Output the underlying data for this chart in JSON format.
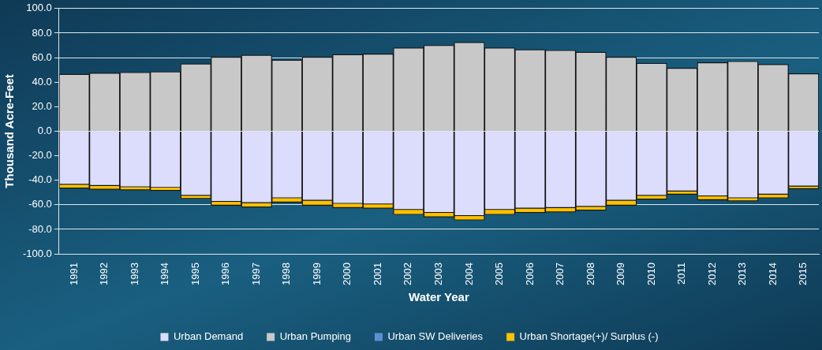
{
  "chart_data": {
    "type": "bar",
    "stacked": true,
    "xlabel": "Water Year",
    "ylabel": "Thousand Acre-Feet",
    "categories": [
      "1991",
      "1992",
      "1993",
      "1994",
      "1995",
      "1996",
      "1997",
      "1998",
      "1999",
      "2000",
      "2001",
      "2002",
      "2003",
      "2004",
      "2005",
      "2006",
      "2007",
      "2008",
      "2009",
      "2010",
      "2011",
      "2012",
      "2013",
      "2014",
      "2015"
    ],
    "series": [
      {
        "name": "Urban Demand",
        "color": "#dcdcfc",
        "values": [
          -43.5,
          -44.5,
          -45.5,
          -46,
          -52.5,
          -57.5,
          -58.5,
          -54.5,
          -56.5,
          -59,
          -59.5,
          -64,
          -66.5,
          -69,
          -64,
          -63,
          -62.5,
          -61.5,
          -56.5,
          -52.5,
          -49,
          -53,
          -54.5,
          -51.5,
          -45
        ]
      },
      {
        "name": "Urban Pumping",
        "color": "#c8c8c8",
        "values": [
          46.5,
          47.5,
          48,
          48.5,
          55,
          60.5,
          62,
          58,
          60.5,
          62.5,
          63,
          68,
          70,
          72.5,
          68,
          66.5,
          66,
          64.5,
          60.5,
          55.5,
          51.5,
          56,
          57,
          54.5,
          47
        ]
      },
      {
        "name": "Urban SW Deliveries",
        "color": "#5b8fd4",
        "values": [
          0,
          0,
          0,
          0,
          0,
          0,
          0,
          0,
          0,
          0,
          0,
          0,
          0,
          0,
          0,
          0,
          0,
          0,
          0,
          0,
          0,
          0,
          0,
          0,
          0
        ]
      },
      {
        "name": "Urban Shortage(+)/ Surplus (-)",
        "color": "#ffc000",
        "values": [
          -3,
          -3,
          -2.5,
          -2.5,
          -2.5,
          -3,
          -3.5,
          -3.5,
          -4,
          -3.5,
          -3.5,
          -4,
          -3.5,
          -3.5,
          -4,
          -3.5,
          -3.5,
          -3,
          -4,
          -3,
          -2.5,
          -3,
          -2.5,
          -3,
          -2
        ]
      }
    ],
    "ylim": [
      -100,
      100
    ],
    "yticks": [
      {
        "value": -100,
        "label": "-100.0"
      },
      {
        "value": -80,
        "label": "-80.0"
      },
      {
        "value": -60,
        "label": "-60.0"
      },
      {
        "value": -40,
        "label": "-40.0"
      },
      {
        "value": -20,
        "label": "-20.0"
      },
      {
        "value": 0,
        "label": "0.0"
      },
      {
        "value": 20,
        "label": "20.0"
      },
      {
        "value": 40,
        "label": "40.0"
      },
      {
        "value": 60,
        "label": "60.0"
      },
      {
        "value": 80,
        "label": "80.0"
      },
      {
        "value": 100,
        "label": "100.0"
      }
    ],
    "grid": "y",
    "legend": "bottom"
  }
}
